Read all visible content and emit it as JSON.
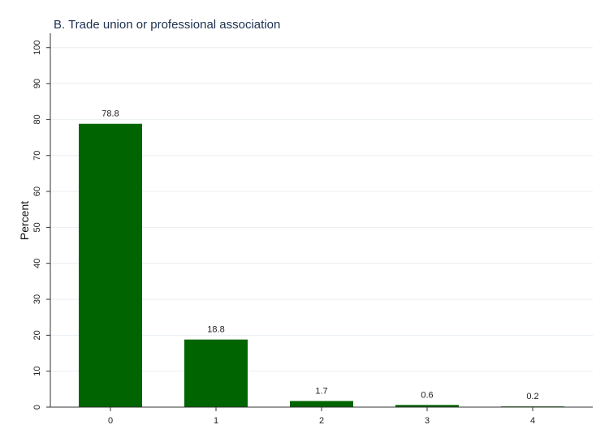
{
  "chart_data": {
    "type": "bar",
    "title": "B. Trade union or professional association",
    "y_label": "Percent",
    "categories": [
      "0",
      "1",
      "2",
      "3",
      "4"
    ],
    "values": [
      78.8,
      18.8,
      1.7,
      0.6,
      0.2
    ],
    "color": "#006400",
    "ylim": [
      0,
      104
    ],
    "yticks": [
      0,
      10,
      20,
      30,
      40,
      50,
      60,
      70,
      80,
      90,
      100
    ],
    "grid": true
  }
}
